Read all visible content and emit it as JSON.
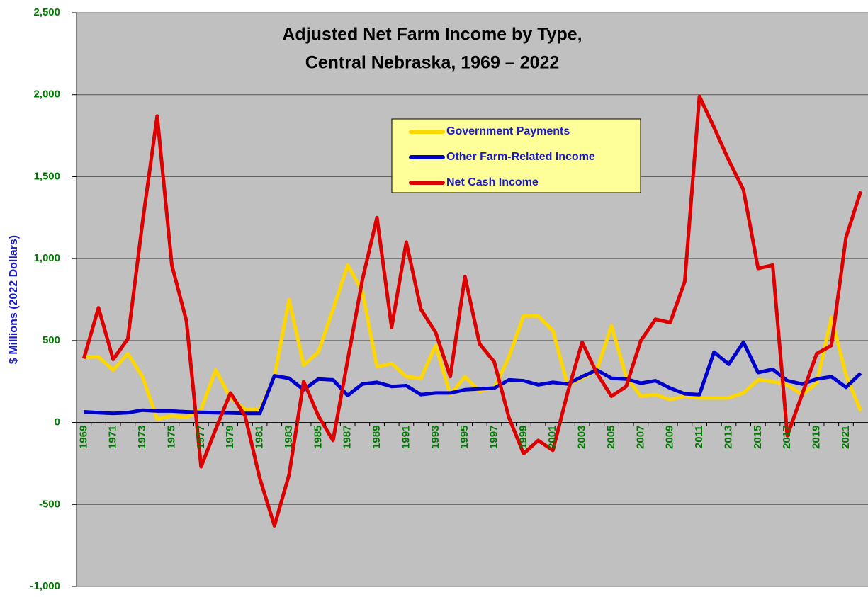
{
  "chart_data": {
    "type": "line",
    "title": [
      "Adjusted Net Farm Income by Type,",
      "Central Nebraska, 1969 – 2022"
    ],
    "y_label": "$ Millions (2022 Dollars)",
    "categories": [
      "1969",
      null,
      "1971",
      null,
      "1973",
      null,
      "1975",
      null,
      "1977",
      null,
      "1979",
      null,
      "1981",
      null,
      "1983",
      null,
      "1985",
      null,
      "1987",
      null,
      "1989",
      null,
      "1991",
      null,
      "1993",
      null,
      "1995",
      null,
      "1997",
      null,
      "1999",
      null,
      "2001",
      null,
      "2003",
      null,
      "2005",
      null,
      "2007",
      null,
      "2009",
      null,
      "2011",
      null,
      "2013",
      null,
      "2015",
      null,
      "2017",
      null,
      "2019",
      null,
      "2021",
      null
    ],
    "series": [
      {
        "name": "Government Payments",
        "color": "#ffd700",
        "values": [
          400,
          400,
          320,
          420,
          280,
          20,
          40,
          30,
          80,
          320,
          150,
          80,
          80,
          280,
          750,
          350,
          430,
          690,
          960,
          800,
          340,
          360,
          280,
          270,
          470,
          170,
          280,
          190,
          210,
          400,
          650,
          650,
          560,
          230,
          270,
          320,
          590,
          280,
          160,
          170,
          140,
          160,
          150,
          150,
          150,
          180,
          260,
          250,
          230,
          170,
          240,
          640,
          290,
          70
        ]
      },
      {
        "name": "Other Farm-Related Income",
        "color": "#0000cc",
        "values": [
          65,
          60,
          55,
          60,
          75,
          70,
          70,
          65,
          62,
          60,
          58,
          55,
          55,
          285,
          270,
          200,
          265,
          260,
          165,
          235,
          245,
          220,
          225,
          170,
          180,
          180,
          200,
          205,
          210,
          260,
          255,
          230,
          245,
          235,
          280,
          320,
          270,
          265,
          240,
          255,
          210,
          175,
          170,
          430,
          355,
          490,
          305,
          325,
          255,
          235,
          265,
          280,
          215,
          300
        ]
      },
      {
        "name": "Net Cash Income",
        "color": "#dd0000",
        "values": [
          390,
          700,
          385,
          510,
          1220,
          1870,
          960,
          620,
          -270,
          -40,
          180,
          40,
          -340,
          -630,
          -320,
          250,
          40,
          -110,
          380,
          870,
          1250,
          580,
          1100,
          690,
          550,
          280,
          890,
          480,
          370,
          30,
          -190,
          -110,
          -170,
          180,
          490,
          300,
          160,
          220,
          500,
          630,
          610,
          860,
          1990,
          1800,
          1600,
          1420,
          940,
          960,
          -80,
          170,
          420,
          470,
          1130,
          1410
        ]
      }
    ],
    "ylim": [
      -1000,
      2500
    ],
    "yticks": [
      {
        "value": -1000,
        "label": "-1,000"
      },
      -500,
      0,
      500,
      {
        "value": 1000,
        "label": "1,000"
      },
      {
        "value": 1500,
        "label": "1,500"
      },
      {
        "value": 2000,
        "label": "2,000"
      },
      {
        "value": 2500,
        "label": "2,500"
      }
    ],
    "grid": true,
    "legend": "top"
  }
}
